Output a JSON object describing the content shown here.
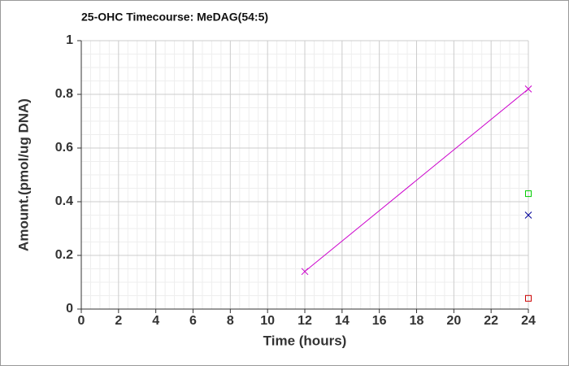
{
  "chart_data": {
    "type": "line",
    "title": "25-OHC Timecourse: MeDAG(54:5)",
    "x_label": "Time (hours)",
    "y_label": "Amount.(pmol/ug DNA)",
    "xlim": [
      0,
      24
    ],
    "xticks": [
      0,
      2,
      4,
      6,
      8,
      10,
      12,
      14,
      16,
      18,
      20,
      22,
      24
    ],
    "ylim": [
      0,
      1
    ],
    "yticks": [
      0,
      0.2,
      0.4,
      0.6,
      0.8,
      1
    ],
    "grid": true,
    "series": [
      {
        "color": "#cc00cc",
        "marker": "x",
        "line": true,
        "x": [
          12,
          24
        ],
        "values": [
          0.14,
          0.82
        ]
      },
      {
        "color": "#00cc00",
        "marker": "square",
        "line": false,
        "x": [
          24
        ],
        "values": [
          0.43
        ]
      },
      {
        "color": "#000099",
        "marker": "x",
        "line": false,
        "x": [
          24
        ],
        "values": [
          0.35
        ]
      },
      {
        "color": "#cc0000",
        "marker": "square",
        "line": false,
        "x": [
          24
        ],
        "values": [
          0.04
        ]
      }
    ]
  }
}
